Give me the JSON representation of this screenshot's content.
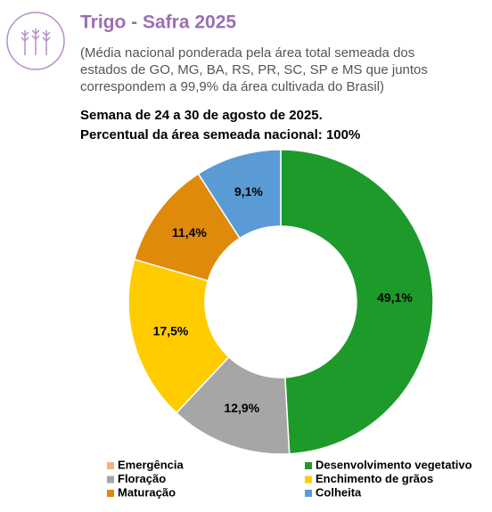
{
  "chart_data": {
    "type": "donut",
    "title": "Trigo - Safra 2025",
    "subtitle": [
      "(Média nacional ponderada pela área total semeada dos",
      "estados de GO, MG, BA, RS, PR, SC, SP e MS que juntos",
      "correspondem a 99,9% da área cultivada do Brasil)"
    ],
    "annotations": [
      "Semana de 24 a 30 de agosto de 2025.",
      "Percentual da área semeada nacional: 100%"
    ],
    "categories": [
      "Emergência",
      "Desenvolvimento vegetativo",
      "Floração",
      "Enchimento de grãos",
      "Maturação",
      "Colheita"
    ],
    "values": [
      0,
      49.1,
      12.9,
      17.5,
      11.4,
      9.1
    ],
    "value_labels": [
      null,
      "49,1%",
      "12,9%",
      "17,5%",
      "11,4%",
      "9,1%"
    ],
    "colors": [
      "#f4b183",
      "#1e9a2b",
      "#a6a6a6",
      "#ffcc00",
      "#e08a0c",
      "#5b9bd5"
    ],
    "legend": "bottom"
  }
}
